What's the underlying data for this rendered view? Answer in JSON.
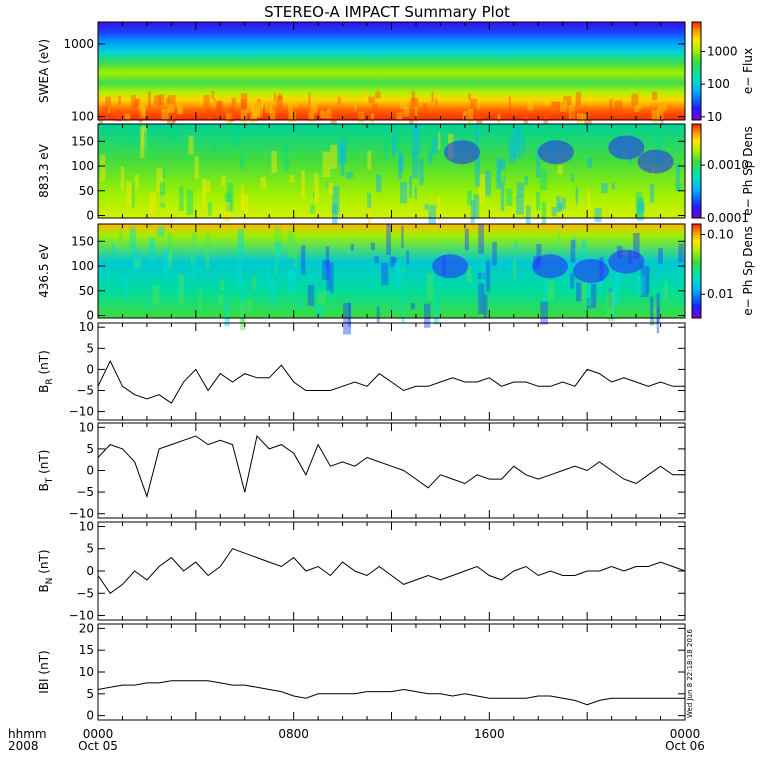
{
  "title": "STEREO-A IMPACT Summary Plot",
  "colors": {
    "axis": "#000000",
    "line": "#000000",
    "background": "#ffffff"
  },
  "xaxis": {
    "row1_label": "hhmm",
    "row2_label": "2008",
    "ticks": [
      {
        "t": 0,
        "time": "0000",
        "date": "Oct 05"
      },
      {
        "t": 8,
        "time": "0800",
        "date": ""
      },
      {
        "t": 16,
        "time": "1600",
        "date": ""
      },
      {
        "t": 24,
        "time": "0000",
        "date": "Oct 06"
      }
    ],
    "range_hours": [
      0,
      24
    ]
  },
  "timestamp": "Wed Jun  8 22:18:18 2016",
  "chart_data": [
    {
      "type": "heatmap",
      "ylabel": "SWEA (eV)",
      "yscale": "log",
      "yrange": [
        90,
        2000
      ],
      "yticks": [
        {
          "v": 100,
          "label": "100"
        },
        {
          "v": 1000,
          "label": "1000"
        }
      ],
      "colorbar": {
        "label": "e− Flux",
        "scale": "log",
        "range": [
          8,
          8000
        ],
        "ticks": [
          {
            "v": 10,
            "label": "10"
          },
          {
            "v": 100,
            "label": "100"
          },
          {
            "v": 1000,
            "label": "1000"
          }
        ]
      }
    },
    {
      "type": "heatmap",
      "ylabel": "883.3 eV",
      "yscale": "linear",
      "yrange": [
        -5,
        185
      ],
      "yticks": [
        {
          "v": 0,
          "label": "0"
        },
        {
          "v": 50,
          "label": "50"
        },
        {
          "v": 100,
          "label": "100"
        },
        {
          "v": 150,
          "label": "150"
        }
      ],
      "colorbar": {
        "label": "e− Ph Sp Dens",
        "scale": "log",
        "range": [
          0.0001,
          0.006
        ],
        "ticks": [
          {
            "v": 0.0001,
            "label": "0.0001"
          },
          {
            "v": 0.001,
            "label": "0.0010"
          }
        ]
      }
    },
    {
      "type": "heatmap",
      "ylabel": "436.5 eV",
      "yscale": "linear",
      "yrange": [
        -5,
        185
      ],
      "yticks": [
        {
          "v": 0,
          "label": "0"
        },
        {
          "v": 50,
          "label": "50"
        },
        {
          "v": 100,
          "label": "100"
        },
        {
          "v": 150,
          "label": "150"
        }
      ],
      "colorbar": {
        "label": "e− Ph Sp Dens",
        "scale": "log",
        "range": [
          0.004,
          0.15
        ],
        "ticks": [
          {
            "v": 0.01,
            "label": "0.01"
          },
          {
            "v": 0.1,
            "label": "0.10"
          }
        ]
      }
    },
    {
      "type": "line",
      "ylabel_main": "B",
      "ylabel_sub": "R",
      "ylabel_unit": " (nT)",
      "yrange": [
        -12,
        11
      ],
      "yticks": [
        {
          "v": -10,
          "label": "−10"
        },
        {
          "v": -5,
          "label": "−5"
        },
        {
          "v": 0,
          "label": "0"
        },
        {
          "v": 5,
          "label": "5"
        },
        {
          "v": 10,
          "label": "10"
        }
      ],
      "x": [
        0,
        0.5,
        1,
        1.5,
        2,
        2.5,
        3,
        3.5,
        4,
        4.5,
        5,
        5.5,
        6,
        6.5,
        7,
        7.5,
        8,
        8.5,
        9,
        9.5,
        10,
        10.5,
        11,
        11.5,
        12,
        12.5,
        13,
        13.5,
        14,
        14.5,
        15,
        15.5,
        16,
        16.5,
        17,
        17.5,
        18,
        18.5,
        19,
        19.5,
        20,
        20.5,
        21,
        21.5,
        22,
        22.5,
        23,
        23.5,
        24
      ],
      "y": [
        -4,
        2,
        -4,
        -6,
        -7,
        -6,
        -8,
        -3,
        0,
        -5,
        -1,
        -3,
        -1,
        -2,
        -2,
        1,
        -3,
        -5,
        -5,
        -5,
        -4,
        -3,
        -4,
        -1,
        -3,
        -5,
        -4,
        -4,
        -3,
        -2,
        -3,
        -3,
        -2,
        -4,
        -3,
        -3,
        -4,
        -4,
        -3,
        -4,
        0,
        -1,
        -3,
        -2,
        -3,
        -4,
        -3,
        -4,
        -4
      ]
    },
    {
      "type": "line",
      "ylabel_main": "B",
      "ylabel_sub": "T",
      "ylabel_unit": " (nT)",
      "yrange": [
        -11,
        11
      ],
      "yticks": [
        {
          "v": -10,
          "label": "−10"
        },
        {
          "v": -5,
          "label": "−5"
        },
        {
          "v": 0,
          "label": "0"
        },
        {
          "v": 5,
          "label": "5"
        },
        {
          "v": 10,
          "label": "10"
        }
      ],
      "x": [
        0,
        0.5,
        1,
        1.5,
        2,
        2.5,
        3,
        3.5,
        4,
        4.5,
        5,
        5.5,
        6,
        6.5,
        7,
        7.5,
        8,
        8.5,
        9,
        9.5,
        10,
        10.5,
        11,
        11.5,
        12,
        12.5,
        13,
        13.5,
        14,
        14.5,
        15,
        15.5,
        16,
        16.5,
        17,
        17.5,
        18,
        18.5,
        19,
        19.5,
        20,
        20.5,
        21,
        21.5,
        22,
        22.5,
        23,
        23.5,
        24
      ],
      "y": [
        3,
        6,
        5,
        2,
        -6,
        5,
        6,
        7,
        8,
        6,
        7,
        6,
        -5,
        8,
        5,
        6,
        4,
        -1,
        6,
        1,
        2,
        1,
        3,
        2,
        1,
        0,
        -2,
        -4,
        -1,
        -2,
        -3,
        -1,
        -2,
        -2,
        1,
        -1,
        -2,
        -1,
        0,
        1,
        0,
        2,
        0,
        -2,
        -3,
        -1,
        1,
        -1,
        -1
      ]
    },
    {
      "type": "line",
      "ylabel_main": "B",
      "ylabel_sub": "N",
      "ylabel_unit": " (nT)",
      "yrange": [
        -11,
        11
      ],
      "yticks": [
        {
          "v": -10,
          "label": "−10"
        },
        {
          "v": -5,
          "label": "−5"
        },
        {
          "v": 0,
          "label": "0"
        },
        {
          "v": 5,
          "label": "5"
        },
        {
          "v": 10,
          "label": "10"
        }
      ],
      "x": [
        0,
        0.5,
        1,
        1.5,
        2,
        2.5,
        3,
        3.5,
        4,
        4.5,
        5,
        5.5,
        6,
        6.5,
        7,
        7.5,
        8,
        8.5,
        9,
        9.5,
        10,
        10.5,
        11,
        11.5,
        12,
        12.5,
        13,
        13.5,
        14,
        14.5,
        15,
        15.5,
        16,
        16.5,
        17,
        17.5,
        18,
        18.5,
        19,
        19.5,
        20,
        20.5,
        21,
        21.5,
        22,
        22.5,
        23,
        23.5,
        24
      ],
      "y": [
        -1,
        -5,
        -3,
        0,
        -2,
        1,
        3,
        0,
        2,
        -1,
        1,
        5,
        4,
        3,
        2,
        1,
        3,
        0,
        1,
        -1,
        2,
        0,
        -1,
        1,
        -1,
        -3,
        -2,
        -1,
        -2,
        -1,
        0,
        1,
        -1,
        -2,
        0,
        1,
        -1,
        0,
        -1,
        -1,
        0,
        0,
        1,
        0,
        1,
        1,
        2,
        1,
        0
      ]
    },
    {
      "type": "line",
      "ylabel_main": "IBI",
      "ylabel_sub": "",
      "ylabel_unit": " (nT)",
      "yrange": [
        -1,
        21
      ],
      "yticks": [
        {
          "v": 0,
          "label": "0"
        },
        {
          "v": 5,
          "label": "5"
        },
        {
          "v": 10,
          "label": "10"
        },
        {
          "v": 15,
          "label": "15"
        },
        {
          "v": 20,
          "label": "20"
        }
      ],
      "x": [
        0,
        0.5,
        1,
        1.5,
        2,
        2.5,
        3,
        3.5,
        4,
        4.5,
        5,
        5.5,
        6,
        6.5,
        7,
        7.5,
        8,
        8.5,
        9,
        9.5,
        10,
        10.5,
        11,
        11.5,
        12,
        12.5,
        13,
        13.5,
        14,
        14.5,
        15,
        15.5,
        16,
        16.5,
        17,
        17.5,
        18,
        18.5,
        19,
        19.5,
        20,
        20.5,
        21,
        21.5,
        22,
        22.5,
        23,
        23.5,
        24
      ],
      "y": [
        6,
        6.5,
        7,
        7,
        7.5,
        7.5,
        8,
        8,
        8,
        8,
        7.5,
        7,
        7,
        6.5,
        6,
        5.5,
        4.5,
        4,
        5,
        5,
        5,
        5,
        5.5,
        5.5,
        5.5,
        6,
        5.5,
        5,
        5,
        4.5,
        5,
        4.5,
        4,
        4,
        4,
        4,
        4.5,
        4.5,
        4,
        3.5,
        2.5,
        3.5,
        4,
        4,
        4,
        4,
        4,
        4,
        4
      ]
    }
  ]
}
